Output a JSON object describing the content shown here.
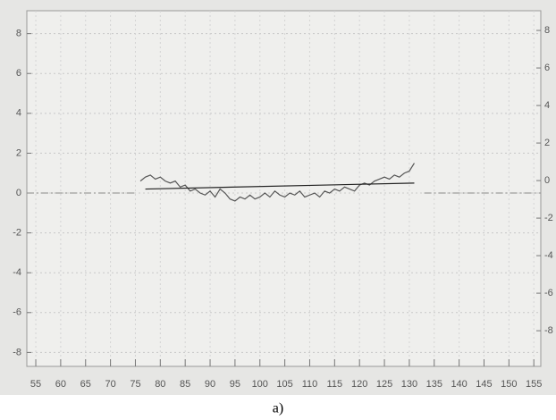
{
  "chart_data": {
    "type": "line",
    "caption": "a)",
    "xlim": [
      53.2,
      156.4
    ],
    "xticks": [
      55,
      60,
      65,
      70,
      75,
      80,
      85,
      90,
      95,
      100,
      105,
      110,
      115,
      120,
      125,
      130,
      135,
      140,
      145,
      150,
      155
    ],
    "ylim": [
      -8.7,
      9.15
    ],
    "yticks": [
      -8,
      -6,
      -4,
      -2,
      0,
      2,
      4,
      6,
      8
    ],
    "y2lim": [
      -9.9,
      9.05
    ],
    "y2ticks": [
      -8,
      -6,
      -4,
      -2,
      0,
      2,
      4,
      6,
      8
    ],
    "grid": true,
    "series": [
      {
        "color": "#555555",
        "x": [
          76,
          77,
          78,
          79,
          80,
          81,
          82,
          83,
          84,
          85,
          86,
          87,
          88,
          89,
          90,
          91,
          92,
          93,
          94,
          95,
          96,
          97,
          98,
          99,
          100,
          101,
          102,
          103,
          104,
          105,
          106,
          107,
          108,
          109,
          110,
          111,
          112,
          113,
          114,
          115,
          116,
          117,
          118,
          119,
          120,
          121,
          122,
          123,
          124,
          125,
          126,
          127,
          128,
          129,
          130,
          131
        ],
        "values": [
          0.6,
          0.8,
          0.9,
          0.7,
          0.8,
          0.6,
          0.5,
          0.6,
          0.3,
          0.4,
          0.1,
          0.2,
          0.0,
          -0.1,
          0.1,
          -0.2,
          0.2,
          0.0,
          -0.3,
          -0.4,
          -0.2,
          -0.3,
          -0.1,
          -0.3,
          -0.2,
          0.0,
          -0.2,
          0.1,
          -0.1,
          -0.2,
          0.0,
          -0.1,
          0.1,
          -0.2,
          -0.1,
          0.0,
          -0.2,
          0.1,
          0.0,
          0.2,
          0.1,
          0.3,
          0.2,
          0.1,
          0.4,
          0.5,
          0.4,
          0.6,
          0.7,
          0.8,
          0.7,
          0.9,
          0.8,
          1.0,
          1.1,
          1.5
        ]
      },
      {
        "color": "#222222",
        "x": [
          77,
          131
        ],
        "values": [
          0.2,
          0.5
        ]
      }
    ],
    "reference_lines": [
      {
        "y": 0,
        "x": [
          53.2,
          75
        ],
        "color": "#888888"
      },
      {
        "y": 0,
        "x": [
          133,
          156.4
        ],
        "color": "#888888"
      }
    ]
  }
}
